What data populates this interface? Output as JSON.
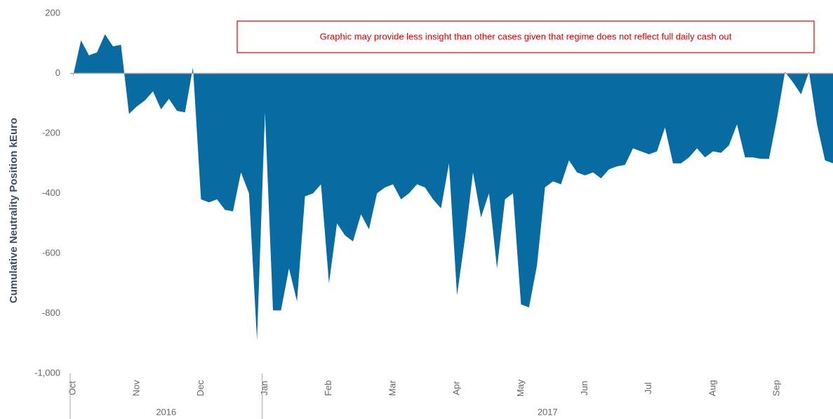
{
  "chart_data": {
    "type": "area",
    "ylabel": "Cumulative Neutrality Position kEuro",
    "annotation": "Graphic may provide less insight than other cases given that regime does not reflect full daily cash out",
    "color": "#086ca2",
    "ylim": [
      -1000,
      200
    ],
    "yticks": [
      {
        "value": -1000,
        "label": "-1,000"
      },
      -800,
      -600,
      -400,
      -200,
      0,
      200
    ],
    "categories": [
      "Oct",
      null,
      null,
      null,
      null,
      null,
      null,
      null,
      "Nov",
      null,
      null,
      null,
      null,
      null,
      null,
      null,
      "Dec",
      null,
      null,
      null,
      null,
      null,
      null,
      null,
      "Jan",
      null,
      null,
      null,
      null,
      null,
      null,
      null,
      "Feb",
      null,
      null,
      null,
      null,
      null,
      null,
      null,
      "Mar",
      null,
      null,
      null,
      null,
      null,
      null,
      null,
      "Apr",
      null,
      null,
      null,
      null,
      null,
      null,
      null,
      "May",
      null,
      null,
      null,
      null,
      null,
      null,
      null,
      "Jun",
      null,
      null,
      null,
      null,
      null,
      null,
      null,
      "Jul",
      null,
      null,
      null,
      null,
      null,
      null,
      null,
      "Aug",
      null,
      null,
      null,
      null,
      null,
      null,
      null,
      "Sep",
      null,
      null,
      null,
      null,
      null,
      null,
      null
    ],
    "values": [
      -10,
      110,
      60,
      70,
      130,
      90,
      95,
      -135,
      -110,
      -90,
      -60,
      -120,
      -85,
      -125,
      -130,
      20,
      -420,
      -430,
      -420,
      -455,
      -460,
      -330,
      -400,
      -890,
      -130,
      -790,
      -790,
      -650,
      -760,
      -410,
      -400,
      -370,
      -700,
      -500,
      -540,
      -560,
      -470,
      -520,
      -400,
      -380,
      -370,
      -420,
      -400,
      -370,
      -380,
      -420,
      -450,
      -300,
      -740,
      -550,
      -330,
      -480,
      -400,
      -650,
      -420,
      -400,
      -770,
      -780,
      -640,
      -380,
      -360,
      -370,
      -290,
      -330,
      -340,
      -330,
      -350,
      -320,
      -310,
      -305,
      -250,
      -260,
      -270,
      -260,
      -180,
      -300,
      -300,
      -280,
      -250,
      -280,
      -260,
      -265,
      -240,
      -170,
      -280,
      -280,
      -285,
      -285,
      -150,
      5,
      -30,
      -70,
      5,
      -170,
      -290,
      -300
    ],
    "year_groups": [
      {
        "label": "2016",
        "from": "Oct"
      },
      {
        "label": "2017",
        "from": "Jan"
      }
    ]
  }
}
